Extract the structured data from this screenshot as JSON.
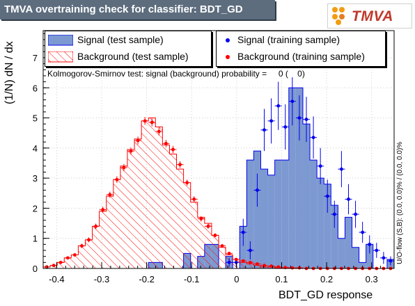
{
  "header": {
    "title": "TMVA overtraining check for classifier: BDT_GD",
    "logo_text": "TMVA"
  },
  "legend": {
    "signal_test": "Signal (test sample)",
    "background_test": "Background (test sample)",
    "signal_train": "Signal (training sample)",
    "background_train": "Background (training sample)"
  },
  "ks_text": "Kolmogorov-Smirnov test: signal (background) probability =     0 (    0)",
  "side_text": "U/O-flow (S,B): (0.0, 0.0)% / (0.0, 0.0)%",
  "colors": {
    "signal_fill": "#7d99d1",
    "signal_line": "#0000ee",
    "background_line": "#ff0000",
    "signal_marker": "#0000ee",
    "background_marker": "#ff0000",
    "title_bar": "#5d6d7e"
  },
  "chart_data": {
    "type": "histogram",
    "xlabel": "BDT_GD response",
    "ylabel": "(1/N) dN / dx",
    "xlim": [
      -0.43,
      0.35
    ],
    "ylim": [
      0,
      7.9
    ],
    "xticks": [
      -0.4,
      -0.3,
      -0.2,
      -0.1,
      0,
      0.1,
      0.2,
      0.3
    ],
    "xtick_labels": [
      "-0.4",
      "-0.3",
      "-0.2",
      "-0.1",
      "0",
      "0.1",
      "0.2",
      "0.3"
    ],
    "yticks": [
      0,
      1,
      2,
      3,
      4,
      5,
      6,
      7
    ],
    "ytick_labels": [
      "0",
      "1",
      "2",
      "3",
      "4",
      "5",
      "6",
      "7"
    ],
    "bin_edges": [
      -0.43,
      -0.4144,
      -0.3988,
      -0.3832,
      -0.3676,
      -0.352,
      -0.3364,
      -0.3208,
      -0.3052,
      -0.2896,
      -0.274,
      -0.2584,
      -0.2428,
      -0.2272,
      -0.2116,
      -0.196,
      -0.1804,
      -0.1648,
      -0.1492,
      -0.1336,
      -0.118,
      -0.1024,
      -0.0868,
      -0.0712,
      -0.0556,
      -0.04,
      -0.0244,
      -0.0088,
      0.0068,
      0.0224,
      0.038,
      0.0536,
      0.0692,
      0.0848,
      0.1004,
      0.116,
      0.1316,
      0.1472,
      0.1628,
      0.1784,
      0.194,
      0.2096,
      0.2252,
      0.2408,
      0.2564,
      0.272,
      0.2876,
      0.3032,
      0.3188,
      0.3344,
      0.35
    ],
    "series": [
      {
        "name": "Signal (test sample)",
        "style": "filled-histogram",
        "values": [
          0,
          0,
          0,
          0,
          0,
          0,
          0,
          0,
          0,
          0,
          0,
          0,
          0,
          0,
          0,
          0.2,
          0.2,
          0,
          0,
          0,
          0.5,
          0,
          0.4,
          0.8,
          0.8,
          0,
          0.4,
          0,
          1.4,
          3.6,
          3.9,
          3.3,
          3.1,
          3.6,
          3.6,
          6.0,
          6.0,
          4.8,
          3.6,
          3.0,
          2.8,
          2.1,
          1.0,
          1.7,
          0.7,
          0.2,
          0.8,
          0,
          0,
          0.3
        ]
      },
      {
        "name": "Background (test sample)",
        "style": "hatched-histogram",
        "values": [
          0.05,
          0.1,
          0.2,
          0.35,
          0.45,
          0.75,
          0.95,
          1.4,
          1.9,
          2.4,
          2.95,
          3.4,
          3.95,
          4.3,
          4.9,
          5.0,
          4.7,
          4.1,
          3.8,
          3.3,
          2.85,
          2.2,
          1.7,
          1.5,
          1.1,
          0.7,
          0.45,
          0.3,
          0.2,
          0.15,
          0.1,
          0.05,
          0.05,
          0.02,
          0.02,
          0,
          0,
          0,
          0,
          0,
          0,
          0,
          0,
          0,
          0,
          0,
          0,
          0,
          0,
          0
        ]
      },
      {
        "name": "Signal (training sample)",
        "style": "markers",
        "values": [
          null,
          null,
          null,
          null,
          null,
          null,
          null,
          null,
          null,
          null,
          null,
          null,
          null,
          null,
          null,
          null,
          null,
          null,
          null,
          null,
          null,
          null,
          null,
          null,
          null,
          null,
          0.2,
          0.2,
          1.2,
          0.6,
          2.6,
          4.6,
          4.9,
          5.4,
          4.7,
          5.55,
          5.0,
          4.95,
          4.35,
          3.4,
          2.4,
          1.8,
          3.3,
          2.3,
          1.8,
          1.2,
          0.8,
          0.6,
          0.35,
          0.25
        ],
        "errors": [
          0,
          0,
          0,
          0,
          0,
          0,
          0,
          0,
          0,
          0,
          0,
          0,
          0,
          0,
          0,
          0,
          0,
          0,
          0,
          0,
          0,
          0,
          0,
          0,
          0,
          0,
          0.15,
          0.15,
          0.45,
          0.3,
          0.55,
          0.7,
          0.75,
          0.8,
          0.75,
          0.8,
          0.75,
          0.75,
          0.7,
          0.6,
          0.55,
          0.45,
          0.6,
          0.5,
          0.45,
          0.35,
          0.3,
          0.25,
          0.2,
          0.15
        ]
      },
      {
        "name": "Background (training sample)",
        "style": "markers",
        "values": [
          0.05,
          0.1,
          0.2,
          0.35,
          0.45,
          0.75,
          0.95,
          1.4,
          1.95,
          2.45,
          2.95,
          3.35,
          3.9,
          4.25,
          4.9,
          4.85,
          4.55,
          4.15,
          3.95,
          3.45,
          2.85,
          2.3,
          1.65,
          1.4,
          1.1,
          0.75,
          0.5,
          0.3,
          0.25,
          0.2,
          0.15,
          0.1,
          0.08,
          0.05,
          0.03,
          0.02,
          0.02,
          0,
          0,
          0,
          0,
          0,
          0,
          0,
          0,
          0,
          0,
          0,
          0,
          0
        ],
        "errors": [
          0.02,
          0.03,
          0.04,
          0.05,
          0.06,
          0.07,
          0.08,
          0.09,
          0.1,
          0.1,
          0.11,
          0.12,
          0.12,
          0.13,
          0.13,
          0.13,
          0.13,
          0.12,
          0.12,
          0.11,
          0.1,
          0.1,
          0.09,
          0.08,
          0.07,
          0.06,
          0.05,
          0.04,
          0.03,
          0.03,
          0.02,
          0.02,
          0.02,
          0.01,
          0.01,
          0.01,
          0.01,
          0,
          0,
          0,
          0,
          0,
          0,
          0,
          0,
          0,
          0,
          0,
          0,
          0
        ]
      }
    ]
  }
}
